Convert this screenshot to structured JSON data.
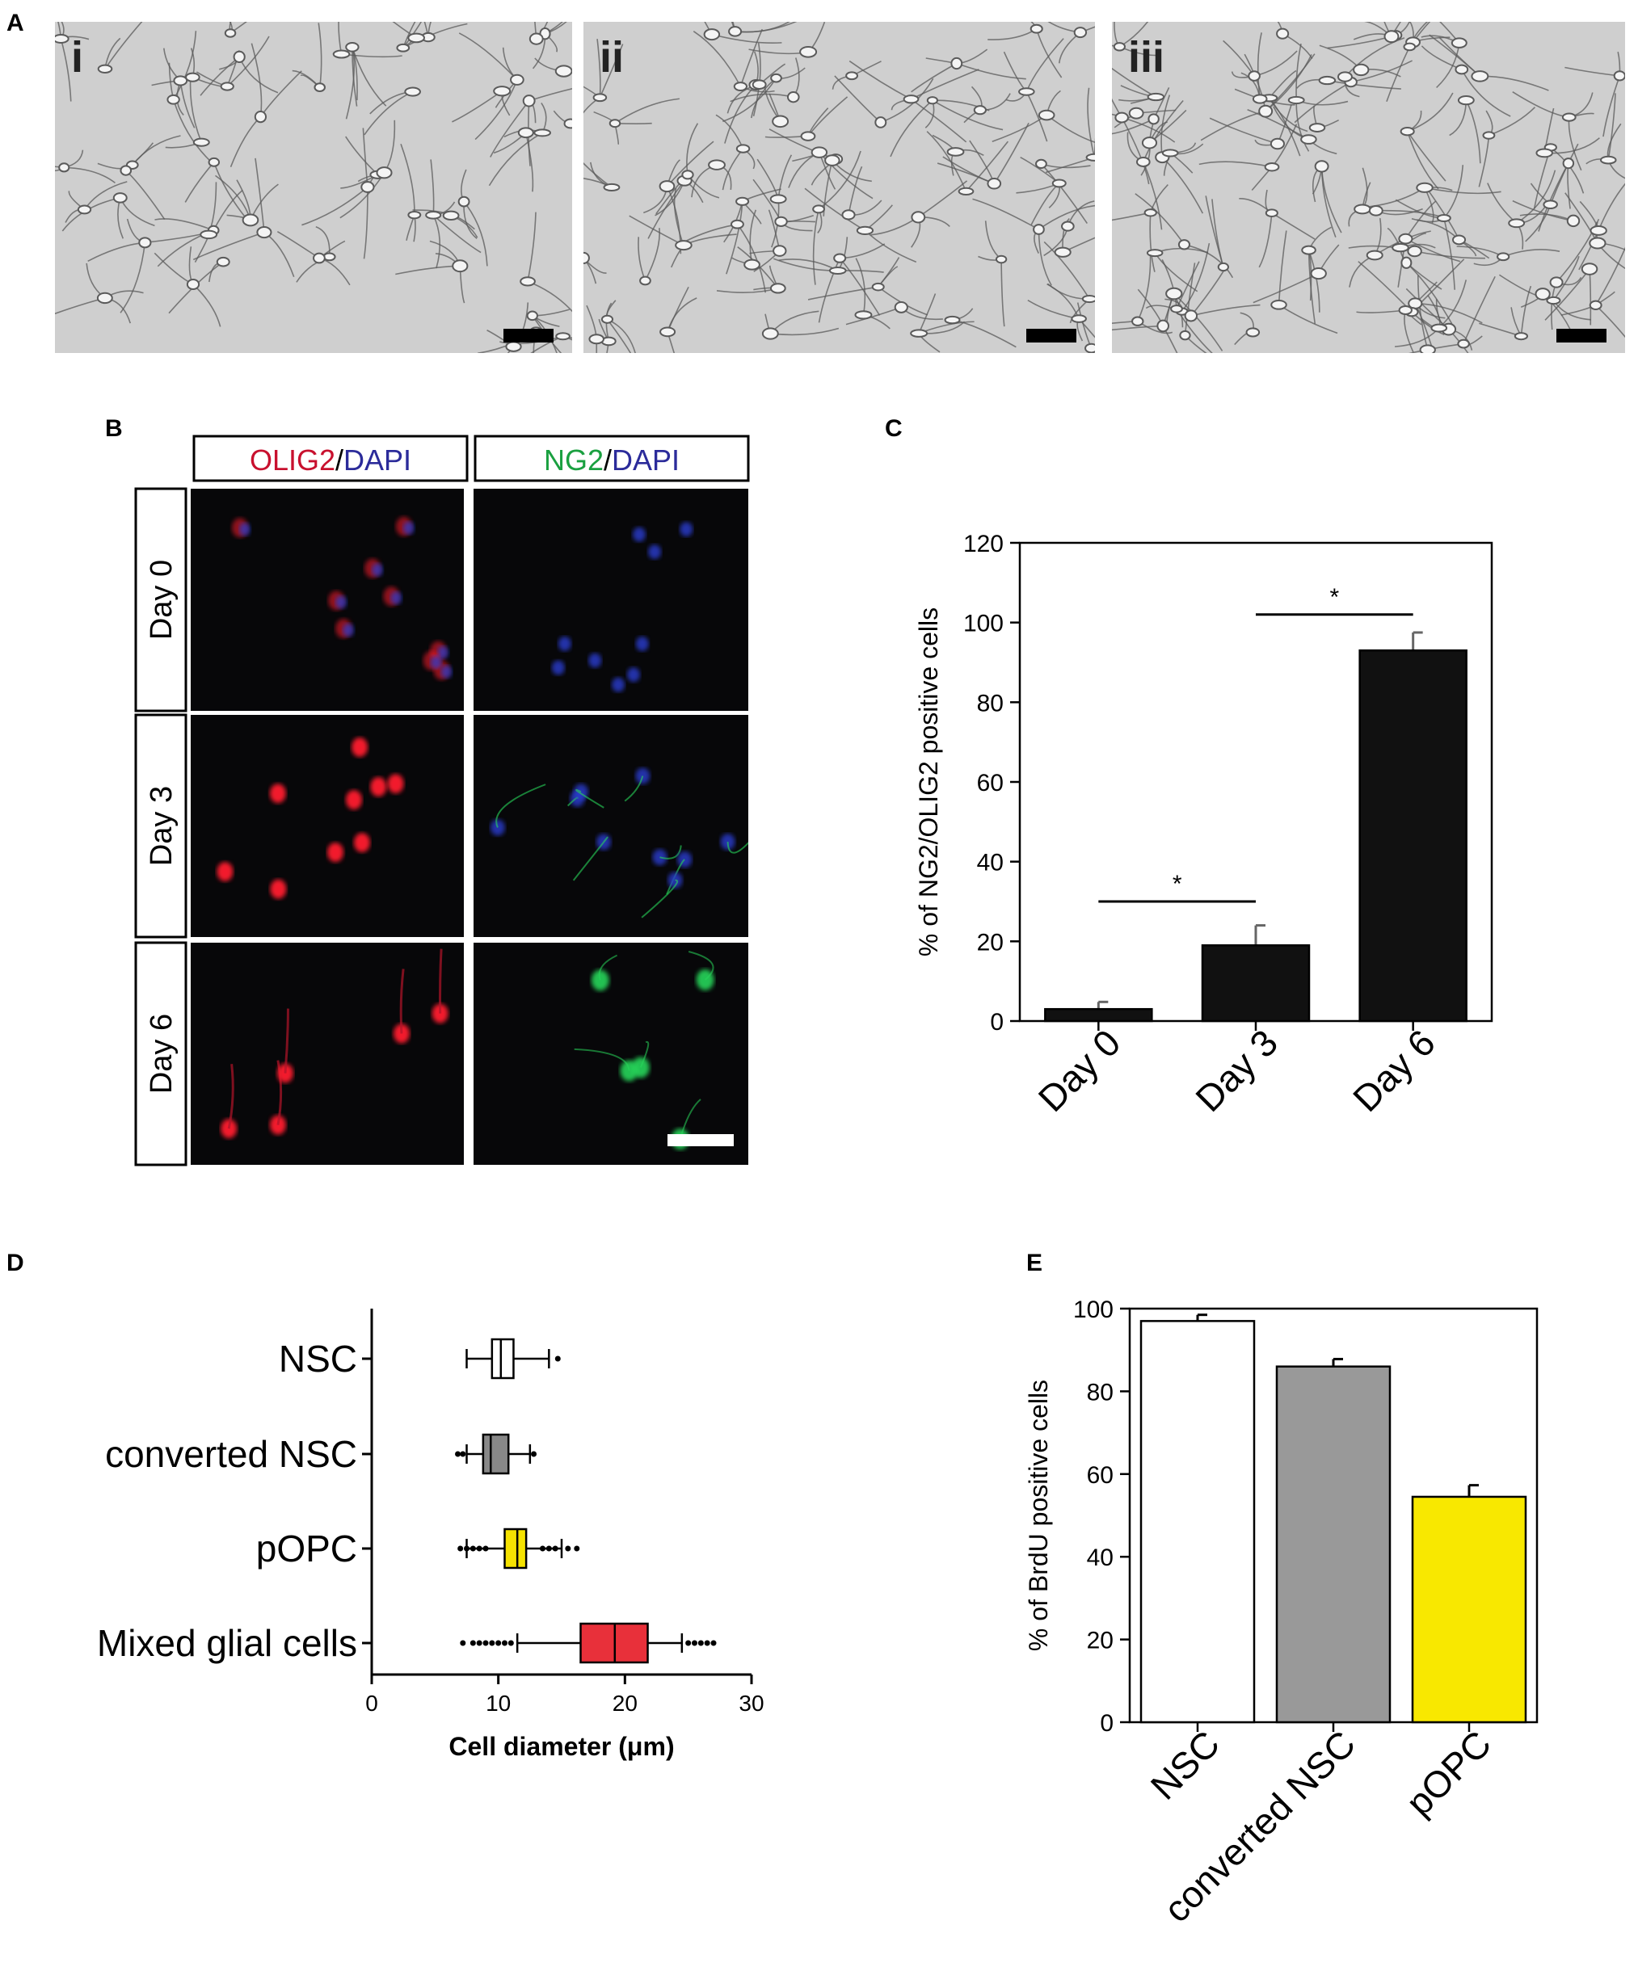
{
  "panel_letters": {
    "A": "A",
    "B": "B",
    "C": "C",
    "D": "D",
    "E": "E"
  },
  "panelA": {
    "images": [
      {
        "label": "i"
      },
      {
        "label": "ii"
      },
      {
        "label": "iii"
      }
    ],
    "colors": {
      "bg": "#cfcfcf",
      "cell": "#5a5a5a",
      "scalebar": "#000000"
    }
  },
  "panelB": {
    "columns": [
      {
        "marker": "OLIG2",
        "sep": "/",
        "dapi": "DAPI",
        "marker_color": "#c8102e",
        "dapi_color": "#2b2b9a"
      },
      {
        "marker": "NG2",
        "sep": "/",
        "dapi": "DAPI",
        "marker_color": "#1aa040",
        "dapi_color": "#2b2b9a"
      }
    ],
    "rows": [
      "Day 0",
      "Day 3",
      "Day 6"
    ],
    "colors": {
      "red": "#ff1a2e",
      "green": "#28d65a",
      "blue": "#2a3cd0"
    }
  },
  "chart_data": [
    {
      "panel": "C",
      "type": "bar",
      "categories": [
        "Day 0",
        "Day 3",
        "Day 6"
      ],
      "values": [
        3,
        19,
        93
      ],
      "errors": [
        1.8,
        5,
        4.5
      ],
      "ylabel": "% of NG2/OLIG2 positive cells",
      "ylim": [
        0,
        120
      ],
      "yticks": [
        0,
        20,
        40,
        60,
        80,
        100,
        120
      ],
      "significance": [
        {
          "from": 0,
          "to": 1,
          "y": 30,
          "label": "*"
        },
        {
          "from": 1,
          "to": 2,
          "y": 102,
          "label": "*"
        }
      ],
      "bar_color": "#111111"
    },
    {
      "panel": "D",
      "type": "box",
      "categories": [
        "NSC",
        "converted NSC",
        "pOPC",
        "Mixed glial cells"
      ],
      "series": [
        {
          "whisker_low": 7.5,
          "q1": 9.5,
          "median": 10.2,
          "q3": 11.2,
          "whisker_high": 14,
          "outliers": [
            14.7
          ],
          "color": "#ffffff"
        },
        {
          "whisker_low": 7.5,
          "q1": 8.8,
          "median": 9.4,
          "q3": 10.8,
          "whisker_high": 12.5,
          "outliers": [
            6.8,
            7.2,
            12.8
          ],
          "color": "#888888"
        },
        {
          "whisker_low": 7.5,
          "q1": 10.5,
          "median": 11.5,
          "q3": 12.2,
          "whisker_high": 15,
          "outliers": [
            7,
            7.5,
            8,
            8.5,
            9,
            13.5,
            14,
            14.5,
            15.5,
            16.2
          ],
          "color": "#f5e200"
        },
        {
          "whisker_low": 11.5,
          "q1": 16.5,
          "median": 19.2,
          "q3": 21.8,
          "whisker_high": 24.5,
          "outliers": [
            7.2,
            8,
            8.5,
            9,
            9.5,
            10,
            10.5,
            11,
            25,
            25.5,
            26,
            26.5,
            27
          ],
          "color": "#e8303a"
        }
      ],
      "xlabel": "Cell diameter (μm)",
      "xlim": [
        0,
        30
      ],
      "xticks": [
        0,
        10,
        20,
        30
      ]
    },
    {
      "panel": "E",
      "type": "bar",
      "categories": [
        "NSC",
        "converted NSC",
        "pOPC"
      ],
      "values": [
        97,
        86,
        54.5
      ],
      "errors": [
        1.5,
        1.8,
        2.8
      ],
      "ylabel": "% of BrdU positive cells",
      "ylim": [
        0,
        100
      ],
      "yticks": [
        0,
        20,
        40,
        60,
        80,
        100
      ],
      "bar_colors": [
        "#ffffff",
        "#999999",
        "#f8e800"
      ]
    }
  ]
}
